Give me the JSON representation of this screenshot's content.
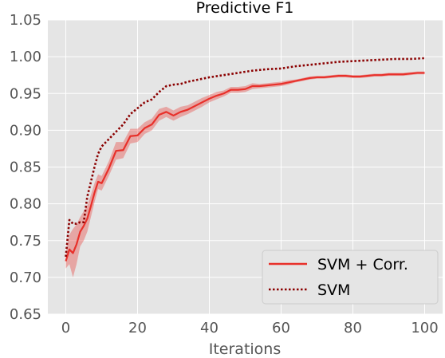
{
  "chart_data": {
    "type": "line",
    "title": "Predictive F1",
    "xlabel": "Iterations",
    "ylabel": "",
    "xlim": [
      -5,
      105
    ],
    "ylim": [
      0.65,
      1.05
    ],
    "xticks": [
      0,
      20,
      40,
      60,
      80,
      100
    ],
    "yticks": [
      0.65,
      0.7,
      0.75,
      0.8,
      0.85,
      0.9,
      0.95,
      1.0,
      1.05
    ],
    "grid": true,
    "legend_position": "bottom-right",
    "series": [
      {
        "name": "SVM + Corr.",
        "style": "solid",
        "color": "#e8302a",
        "band_color": "#e8302a",
        "x": [
          0,
          1,
          2,
          3,
          4,
          5,
          6,
          7,
          8,
          9,
          10,
          12,
          14,
          16,
          18,
          20,
          22,
          24,
          26,
          28,
          30,
          32,
          34,
          36,
          38,
          40,
          42,
          44,
          46,
          48,
          50,
          52,
          54,
          56,
          58,
          60,
          62,
          64,
          66,
          68,
          70,
          72,
          74,
          76,
          78,
          80,
          82,
          84,
          86,
          88,
          90,
          92,
          94,
          96,
          98,
          100
        ],
        "y": [
          0.722,
          0.738,
          0.733,
          0.745,
          0.762,
          0.77,
          0.78,
          0.797,
          0.815,
          0.83,
          0.828,
          0.848,
          0.872,
          0.873,
          0.892,
          0.893,
          0.903,
          0.908,
          0.921,
          0.925,
          0.92,
          0.925,
          0.928,
          0.933,
          0.938,
          0.943,
          0.947,
          0.95,
          0.955,
          0.955,
          0.956,
          0.96,
          0.96,
          0.961,
          0.962,
          0.963,
          0.965,
          0.967,
          0.969,
          0.971,
          0.972,
          0.972,
          0.973,
          0.974,
          0.974,
          0.973,
          0.973,
          0.974,
          0.975,
          0.975,
          0.976,
          0.976,
          0.976,
          0.977,
          0.978,
          0.978
        ],
        "lower": [
          0.712,
          0.718,
          0.7,
          0.718,
          0.742,
          0.75,
          0.762,
          0.782,
          0.802,
          0.82,
          0.818,
          0.838,
          0.86,
          0.862,
          0.882,
          0.884,
          0.895,
          0.9,
          0.913,
          0.918,
          0.913,
          0.918,
          0.922,
          0.927,
          0.932,
          0.938,
          0.942,
          0.946,
          0.951,
          0.951,
          0.952,
          0.956,
          0.957,
          0.958,
          0.959,
          0.96,
          0.962,
          0.965,
          0.967,
          0.969,
          0.97,
          0.97,
          0.971,
          0.972,
          0.972,
          0.971,
          0.971,
          0.972,
          0.973,
          0.973,
          0.974,
          0.974,
          0.974,
          0.975,
          0.976,
          0.976
        ],
        "upper": [
          0.732,
          0.758,
          0.766,
          0.772,
          0.782,
          0.79,
          0.798,
          0.812,
          0.828,
          0.84,
          0.838,
          0.858,
          0.884,
          0.884,
          0.902,
          0.902,
          0.911,
          0.916,
          0.929,
          0.932,
          0.927,
          0.932,
          0.934,
          0.939,
          0.944,
          0.948,
          0.952,
          0.954,
          0.959,
          0.959,
          0.96,
          0.964,
          0.963,
          0.964,
          0.965,
          0.966,
          0.968,
          0.969,
          0.971,
          0.973,
          0.974,
          0.974,
          0.975,
          0.976,
          0.976,
          0.975,
          0.975,
          0.976,
          0.977,
          0.977,
          0.978,
          0.978,
          0.978,
          0.979,
          0.98,
          0.98
        ]
      },
      {
        "name": "SVM",
        "style": "dotted",
        "color": "#8b0000",
        "x": [
          0,
          1,
          2,
          3,
          4,
          5,
          6,
          7,
          8,
          9,
          10,
          12,
          14,
          16,
          18,
          20,
          22,
          24,
          26,
          28,
          30,
          32,
          34,
          36,
          38,
          40,
          44,
          48,
          52,
          56,
          60,
          64,
          68,
          72,
          76,
          80,
          84,
          88,
          92,
          96,
          100
        ],
        "y": [
          0.728,
          0.778,
          0.773,
          0.773,
          0.775,
          0.775,
          0.81,
          0.83,
          0.85,
          0.868,
          0.878,
          0.888,
          0.898,
          0.908,
          0.922,
          0.93,
          0.938,
          0.942,
          0.952,
          0.96,
          0.962,
          0.963,
          0.966,
          0.968,
          0.97,
          0.972,
          0.975,
          0.978,
          0.981,
          0.983,
          0.984,
          0.987,
          0.989,
          0.991,
          0.993,
          0.994,
          0.995,
          0.996,
          0.997,
          0.997,
          0.998
        ]
      }
    ]
  }
}
